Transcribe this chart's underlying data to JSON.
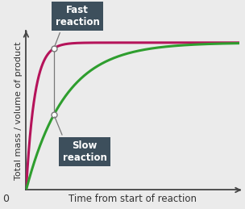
{
  "xlabel": "Time from start of reaction",
  "ylabel": "Total mass / volume of product",
  "background_color": "#ebebeb",
  "grid_color": "#ffffff",
  "fast_color": "#b5135a",
  "slow_color": "#2e9e2e",
  "fast_label": "Fast\nreaction",
  "slow_label": "Slow\nreaction",
  "fast_k": 5.0,
  "slow_k": 1.1,
  "asymptote": 1.0,
  "t_max": 5.0,
  "annotation_box_color": "#3d4f5c",
  "annotation_text_color": "#ffffff",
  "marker_color": "#ffffff",
  "xlabel_fontsize": 8.5,
  "ylabel_fontsize": 8.0,
  "annot_fontsize": 8.5,
  "mark_t": 0.65
}
